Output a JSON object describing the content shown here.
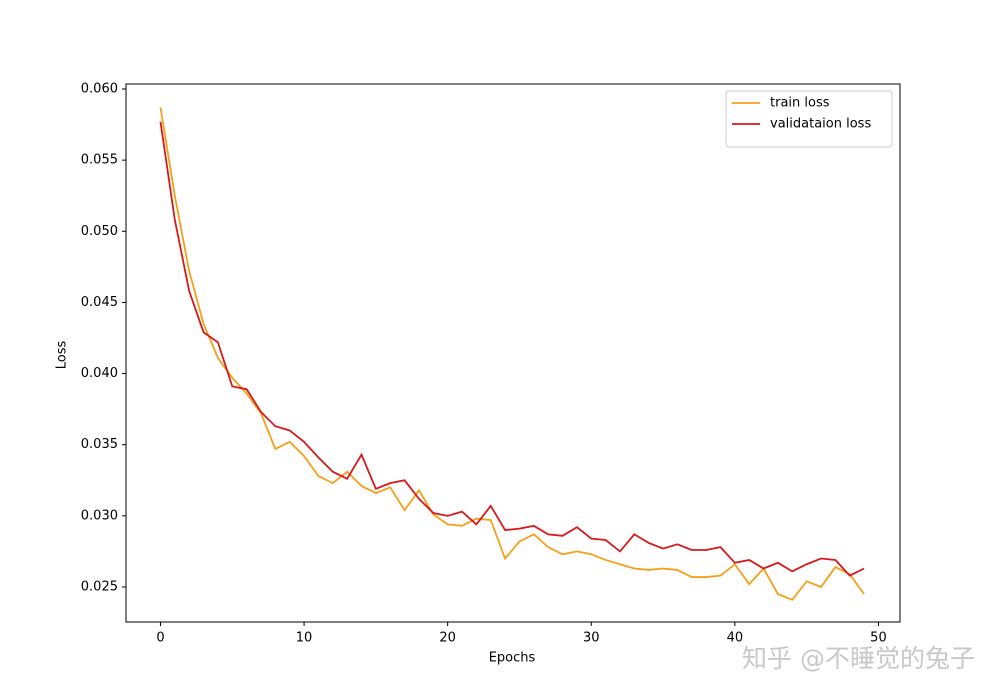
{
  "chart_data": {
    "type": "line",
    "xlabel": "Epochs",
    "ylabel": "Loss",
    "x": [
      0,
      1,
      2,
      3,
      4,
      5,
      6,
      7,
      8,
      9,
      10,
      11,
      12,
      13,
      14,
      15,
      16,
      17,
      18,
      19,
      20,
      21,
      22,
      23,
      24,
      25,
      26,
      27,
      28,
      29,
      30,
      31,
      32,
      33,
      34,
      35,
      36,
      37,
      38,
      39,
      40,
      41,
      42,
      43,
      44,
      45,
      46,
      47,
      48,
      49
    ],
    "series": [
      {
        "name": "train loss",
        "color": "#f5a01a",
        "values": [
          0.0587,
          0.0525,
          0.0472,
          0.0435,
          0.0411,
          0.0397,
          0.0386,
          0.0372,
          0.0347,
          0.0352,
          0.0342,
          0.0328,
          0.0323,
          0.0331,
          0.0321,
          0.0316,
          0.032,
          0.0304,
          0.0318,
          0.0301,
          0.0294,
          0.0293,
          0.0298,
          0.0297,
          0.027,
          0.0282,
          0.0287,
          0.0278,
          0.0273,
          0.0275,
          0.0273,
          0.0269,
          0.0266,
          0.0263,
          0.0262,
          0.0263,
          0.0262,
          0.0257,
          0.0257,
          0.0258,
          0.0266,
          0.0252,
          0.0263,
          0.0245,
          0.0241,
          0.0254,
          0.025,
          0.0264,
          0.0259,
          0.0245
        ]
      },
      {
        "name": "validataion loss",
        "color": "#d7191c",
        "values": [
          0.0577,
          0.0508,
          0.0458,
          0.0429,
          0.0422,
          0.0391,
          0.0389,
          0.0373,
          0.0363,
          0.036,
          0.0352,
          0.0341,
          0.0331,
          0.0326,
          0.0343,
          0.0319,
          0.0323,
          0.0325,
          0.0312,
          0.0302,
          0.03,
          0.0303,
          0.0294,
          0.0307,
          0.029,
          0.0291,
          0.0293,
          0.0287,
          0.0286,
          0.0292,
          0.0284,
          0.0283,
          0.0275,
          0.0287,
          0.0281,
          0.0277,
          0.028,
          0.0276,
          0.0276,
          0.0278,
          0.0267,
          0.0269,
          0.0263,
          0.0267,
          0.0261,
          0.0266,
          0.027,
          0.0269,
          0.0258,
          0.0263
        ]
      }
    ],
    "xlim": [
      -2.4,
      51.5
    ],
    "ylim": [
      0.02254,
      0.06035
    ],
    "xticks": [
      0,
      10,
      20,
      30,
      40,
      50
    ],
    "yticks": [
      0.025,
      {
        "value": 0.03,
        "label": "0.030"
      },
      0.035,
      {
        "value": 0.04,
        "label": "0.040"
      },
      0.045,
      {
        "value": 0.05,
        "label": "0.050"
      },
      0.055,
      {
        "value": 0.06,
        "label": "0.060"
      }
    ],
    "legend": "upper right"
  },
  "watermark": "知乎 @不睡觉的兔子"
}
